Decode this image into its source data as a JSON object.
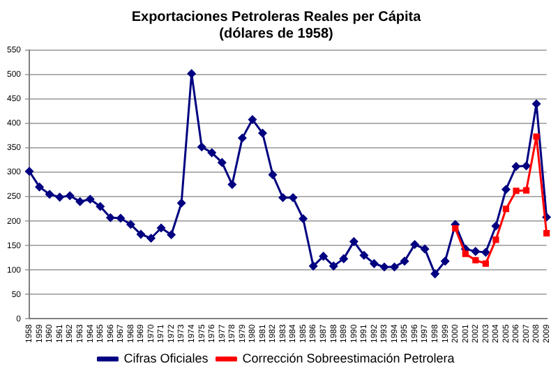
{
  "chart_data": {
    "type": "line",
    "title": [
      "Exportaciones Petroleras Reales per Cápita",
      "(dólares de 1958)"
    ],
    "categories": [
      "1958",
      "1959",
      "1960",
      "1961",
      "1962",
      "1963",
      "1964",
      "1965",
      "1966",
      "1967",
      "1968",
      "1969",
      "1970",
      "1971",
      "1972",
      "1973",
      "1974",
      "1975",
      "1976",
      "1977",
      "1978",
      "1979",
      "1980",
      "1981",
      "1982",
      "1983",
      "1984",
      "1985",
      "1986",
      "1987",
      "1988",
      "1989",
      "1990",
      "1991",
      "1992",
      "1993",
      "1994",
      "1995",
      "1996",
      "1997",
      "1998",
      "1999",
      "2000",
      "2001",
      "2002",
      "2003",
      "2004",
      "2005",
      "2006",
      "2007",
      "2008",
      "2009"
    ],
    "series": [
      {
        "name": "Cifras Oficiales",
        "color": "#000080",
        "marker": "diamond",
        "values": [
          302,
          270,
          255,
          249,
          252,
          240,
          245,
          230,
          207,
          206,
          193,
          173,
          165,
          186,
          172,
          237,
          502,
          352,
          340,
          320,
          275,
          370,
          408,
          380,
          295,
          248,
          248,
          205,
          108,
          128,
          108,
          123,
          158,
          130,
          113,
          106,
          106,
          118,
          152,
          143,
          92,
          118,
          193,
          143,
          138,
          136,
          190,
          265,
          312,
          313,
          440,
          208
        ]
      },
      {
        "name": "Corrección Sobreestimación Petrolera",
        "color": "#ff0000",
        "marker": "square",
        "values": [
          null,
          null,
          null,
          null,
          null,
          null,
          null,
          null,
          null,
          null,
          null,
          null,
          null,
          null,
          null,
          null,
          null,
          null,
          null,
          null,
          null,
          null,
          null,
          null,
          null,
          null,
          null,
          null,
          null,
          null,
          null,
          null,
          null,
          null,
          null,
          null,
          null,
          null,
          null,
          null,
          null,
          null,
          185,
          133,
          120,
          113,
          162,
          225,
          262,
          263,
          373,
          175
        ]
      }
    ],
    "ylim": [
      0,
      550
    ],
    "yticks": [
      0,
      50,
      100,
      150,
      200,
      250,
      300,
      350,
      400,
      450,
      500,
      550
    ],
    "grid": "y",
    "legend": "bottom"
  }
}
